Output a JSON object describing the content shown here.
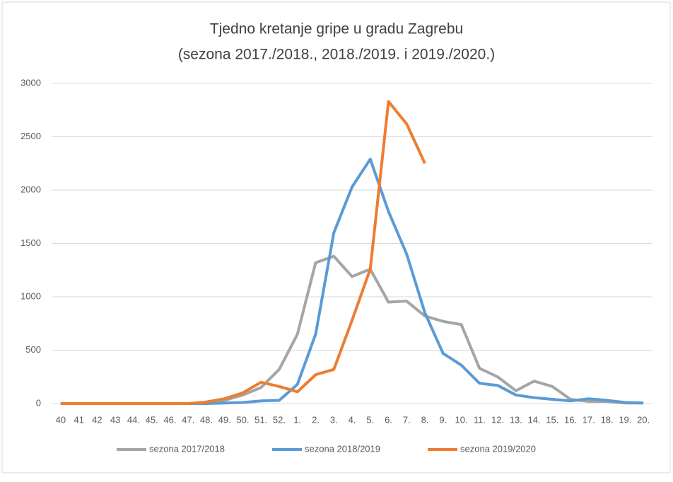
{
  "chart_data": {
    "type": "line",
    "title": "Tjedno kretanje gripe u gradu Zagrebu",
    "subtitle": "(sezona 2017./2018., 2018./2019. i 2019./2020.)",
    "categories": [
      "40",
      "41",
      "42",
      "43",
      "44.",
      "45.",
      "46.",
      "47.",
      "48.",
      "49.",
      "50.",
      "51.",
      "52.",
      "1.",
      "2.",
      "3.",
      "4.",
      "5.",
      "6.",
      "7.",
      "8.",
      "9.",
      "10.",
      "11.",
      "12.",
      "13.",
      "14.",
      "15.",
      "16.",
      "17.",
      "18.",
      "19.",
      "20."
    ],
    "series": [
      {
        "name": "sezona 2017/2018",
        "color": "#a5a5a5",
        "values": [
          0,
          0,
          0,
          0,
          0,
          0,
          0,
          0,
          10,
          30,
          80,
          150,
          320,
          650,
          1320,
          1380,
          1190,
          1260,
          950,
          960,
          820,
          770,
          740,
          330,
          250,
          120,
          210,
          160,
          40,
          20,
          20,
          5,
          5
        ]
      },
      {
        "name": "sezona 2018/2019",
        "color": "#5b9bd5",
        "values": [
          0,
          0,
          0,
          0,
          0,
          0,
          0,
          0,
          0,
          5,
          10,
          25,
          30,
          180,
          650,
          1600,
          2030,
          2290,
          1800,
          1400,
          850,
          470,
          360,
          190,
          170,
          80,
          55,
          40,
          25,
          45,
          30,
          10,
          5
        ]
      },
      {
        "name": "sezona 2019/2020",
        "color": "#ed7d31",
        "values": [
          0,
          0,
          0,
          0,
          0,
          0,
          0,
          0,
          15,
          45,
          100,
          200,
          160,
          110,
          270,
          320,
          780,
          1260,
          2830,
          2620,
          2250,
          null,
          null,
          null,
          null,
          null,
          null,
          null,
          null,
          null,
          null,
          null,
          null
        ]
      }
    ],
    "ylim": [
      0,
      3000
    ],
    "yticks": [
      0,
      500,
      1000,
      1500,
      2000,
      2500,
      3000
    ],
    "grid": true,
    "legend": "bottom"
  }
}
